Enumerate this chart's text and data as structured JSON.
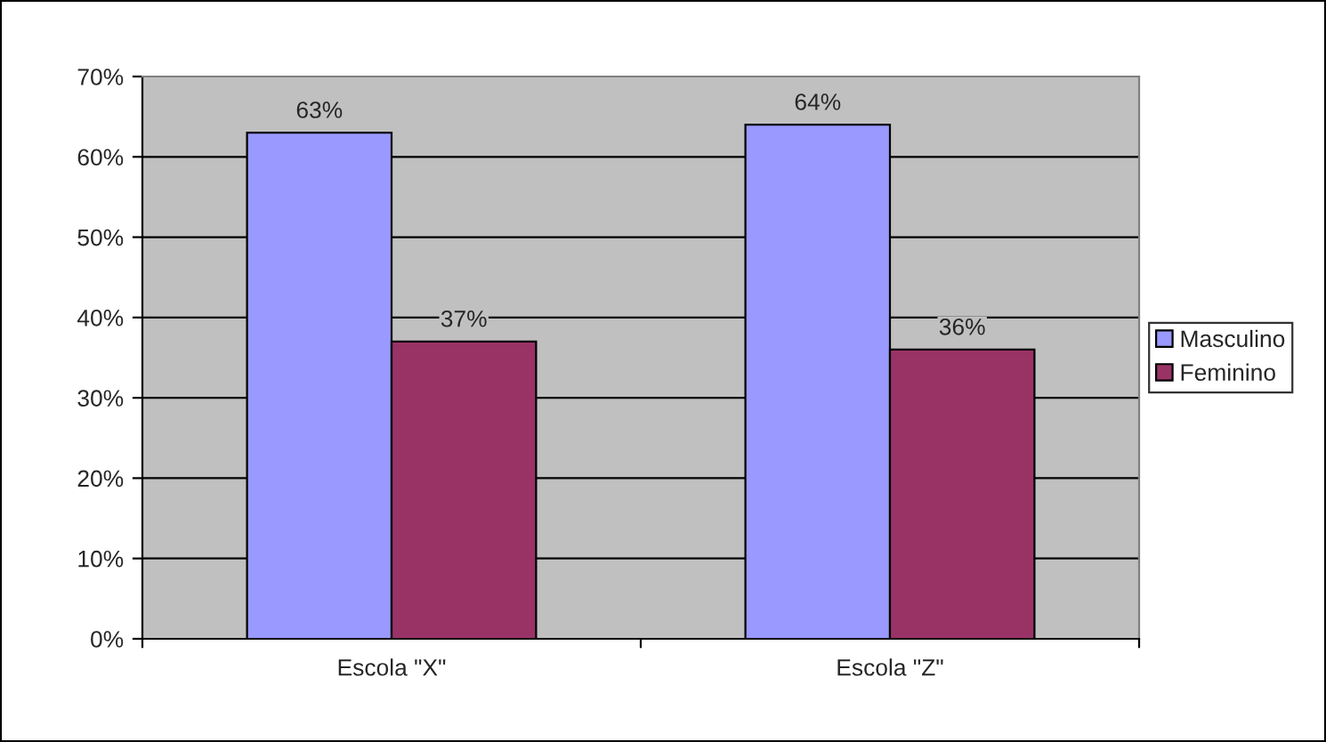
{
  "chart_data": {
    "type": "bar",
    "categories": [
      "Escola \"X\"",
      "Escola \"Z\""
    ],
    "series": [
      {
        "name": "Masculino",
        "color": "#9999ff",
        "values": [
          63,
          64
        ],
        "value_labels": [
          "63%",
          "64%"
        ]
      },
      {
        "name": "Feminino",
        "color": "#993366",
        "values": [
          37,
          36
        ],
        "value_labels": [
          "37%",
          "36%"
        ]
      }
    ],
    "ylim": [
      0,
      70
    ],
    "yticks": [
      {
        "value": 0,
        "label": "0%"
      },
      {
        "value": 10,
        "label": "10%"
      },
      {
        "value": 20,
        "label": "20%"
      },
      {
        "value": 30,
        "label": "30%"
      },
      {
        "value": 40,
        "label": "40%"
      },
      {
        "value": 50,
        "label": "50%"
      },
      {
        "value": 60,
        "label": "60%"
      },
      {
        "value": 70,
        "label": "70%"
      }
    ],
    "grid": "y",
    "legend": "right"
  }
}
